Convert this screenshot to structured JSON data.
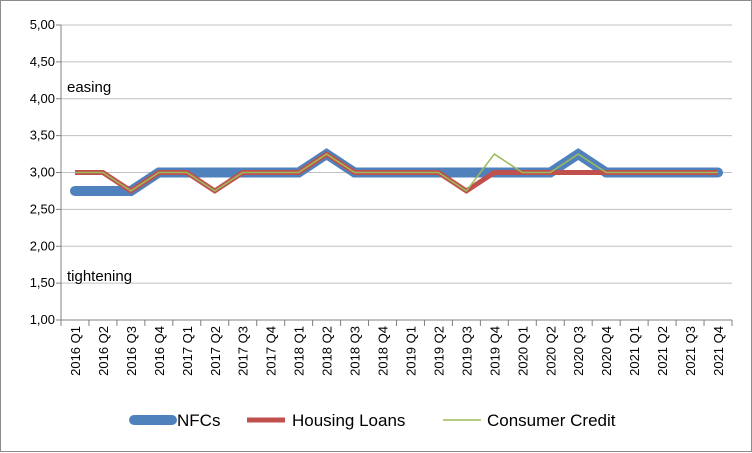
{
  "chart_data": {
    "type": "line",
    "categories": [
      "2016 Q1",
      "2016 Q2",
      "2016 Q3",
      "2016 Q4",
      "2017 Q1",
      "2017 Q2",
      "2017 Q3",
      "2017 Q4",
      "2018 Q1",
      "2018 Q2",
      "2018 Q3",
      "2018 Q4",
      "2019 Q1",
      "2019 Q2",
      "2019 Q3",
      "2019 Q4",
      "2020 Q1",
      "2020 Q2",
      "2020 Q3",
      "2020 Q4",
      "2021 Q1",
      "2021 Q2",
      "2021 Q3",
      "2021 Q4"
    ],
    "series": [
      {
        "name": "NFCs",
        "color": "#4f81bd",
        "values": [
          2.75,
          2.75,
          2.75,
          3.0,
          3.0,
          3.0,
          3.0,
          3.0,
          3.0,
          3.25,
          3.0,
          3.0,
          3.0,
          3.0,
          3.0,
          3.0,
          3.0,
          3.0,
          3.25,
          3.0,
          3.0,
          3.0,
          3.0,
          3.0
        ]
      },
      {
        "name": "Housing Loans",
        "color": "#c0504d",
        "values": [
          3.0,
          3.0,
          2.75,
          3.0,
          3.0,
          2.75,
          3.0,
          3.0,
          3.0,
          3.25,
          3.0,
          3.0,
          3.0,
          3.0,
          2.75,
          3.0,
          3.0,
          3.0,
          3.0,
          3.0,
          3.0,
          3.0,
          3.0,
          3.0
        ]
      },
      {
        "name": "Consumer Credit",
        "color": "#9bbb59",
        "values": [
          3.0,
          3.0,
          2.75,
          3.0,
          3.0,
          2.75,
          3.0,
          3.0,
          3.0,
          3.25,
          3.0,
          3.0,
          3.0,
          3.0,
          2.75,
          3.25,
          3.0,
          3.0,
          3.25,
          3.0,
          3.0,
          3.0,
          3.0,
          3.0
        ]
      }
    ],
    "ylim": [
      1.0,
      5.0
    ],
    "yticks": [
      "1,00",
      "1,50",
      "2,00",
      "2,50",
      "3,00",
      "3,50",
      "4,00",
      "4,50",
      "5,00"
    ],
    "annotations": {
      "upper": "easing",
      "lower": "tightening"
    },
    "grid": true,
    "legend_position": "bottom"
  }
}
